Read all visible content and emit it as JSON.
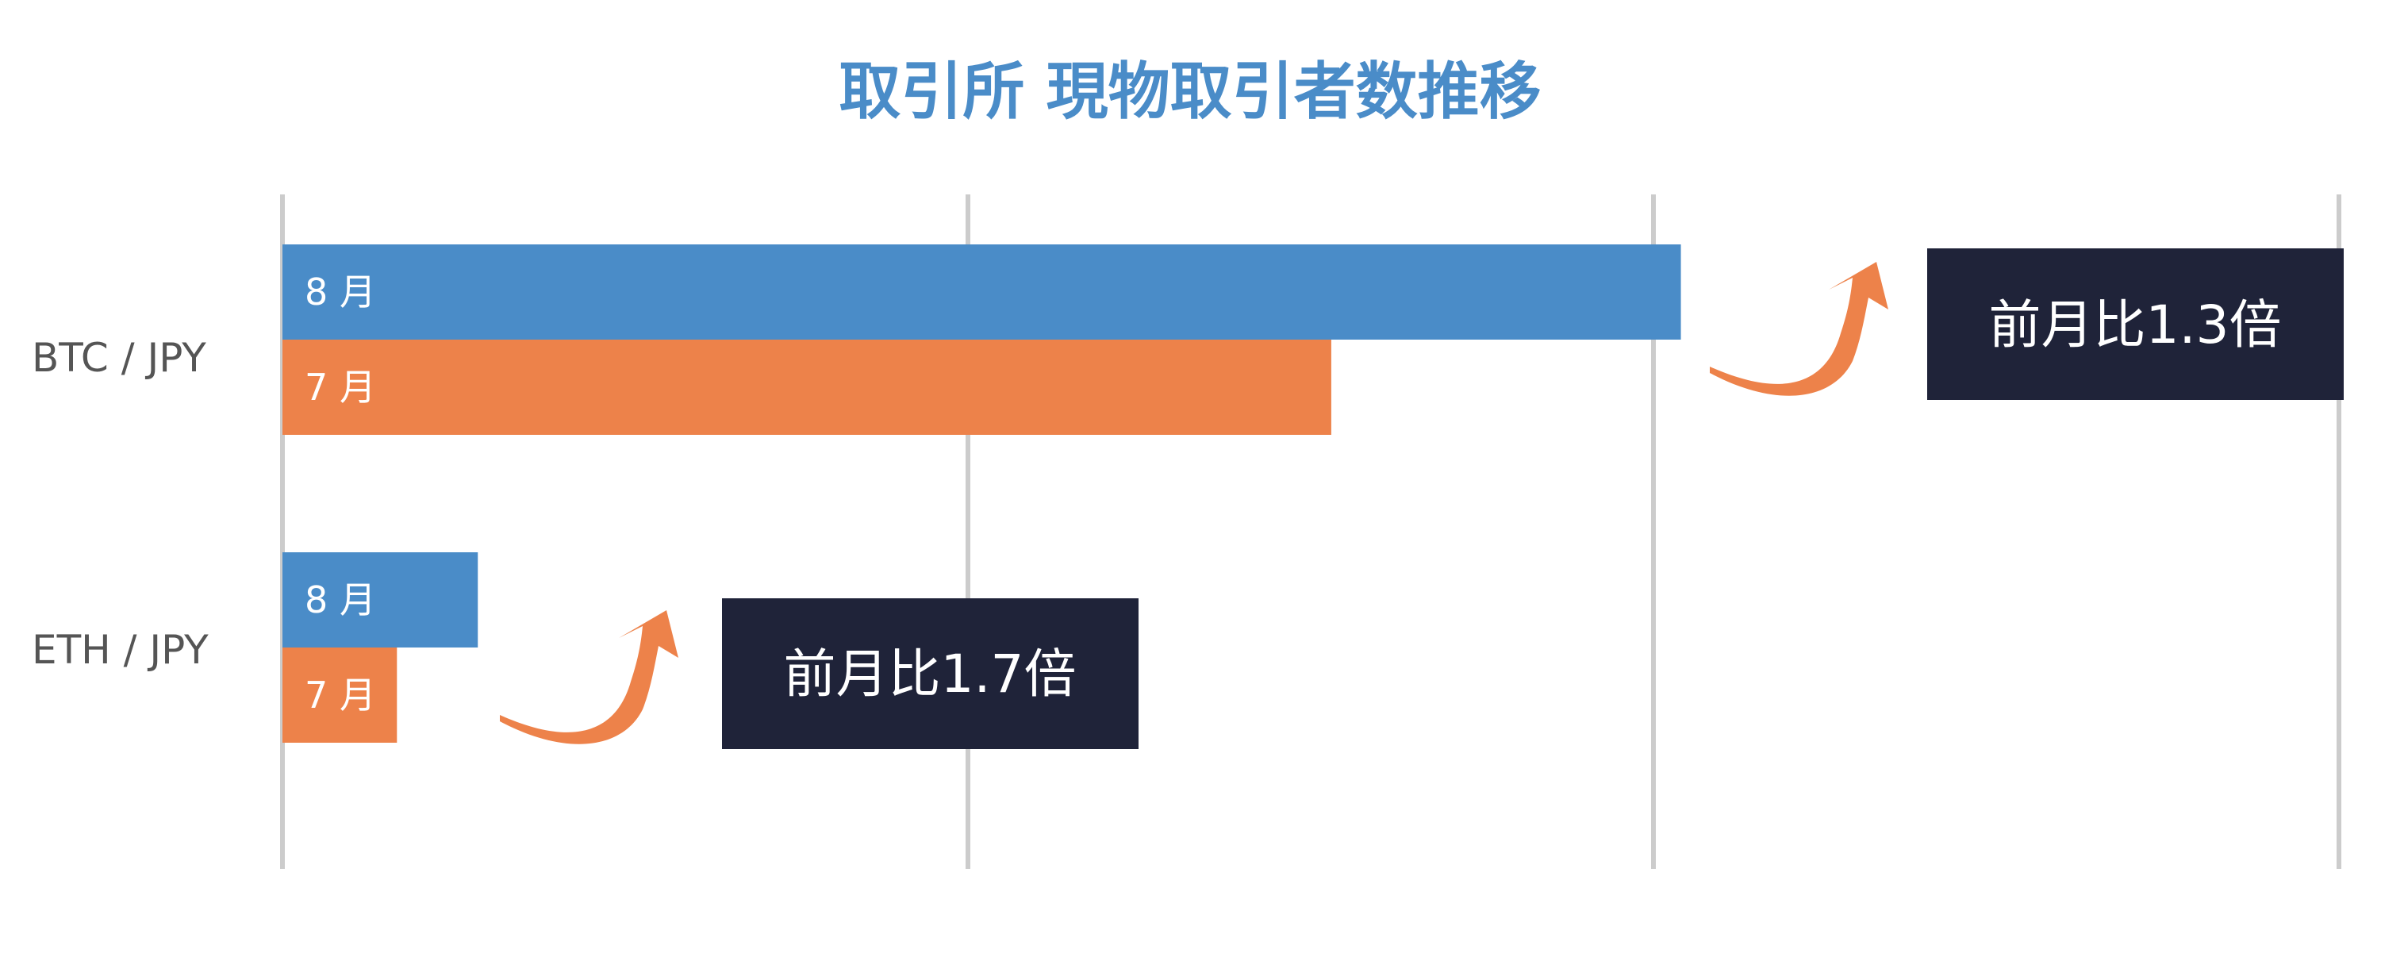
{
  "chart_data": {
    "type": "bar",
    "orientation": "horizontal",
    "title": "取引所 現物取引者数推移",
    "categories": [
      "BTC / JPY",
      "ETH / JPY"
    ],
    "series": [
      {
        "name": "8 月",
        "color": "#4a8cc8",
        "values": [
          2.04,
          0.285
        ]
      },
      {
        "name": "7 月",
        "color": "#ed824a",
        "values": [
          1.53,
          0.167
        ]
      }
    ],
    "xlim": [
      0,
      3
    ],
    "gridlines": [
      0,
      1,
      2,
      3
    ],
    "grid": true,
    "x_tick_labels_shown": false,
    "annotations": [
      {
        "category": "BTC / JPY",
        "text": "前月比1.3倍"
      },
      {
        "category": "ETH / JPY",
        "text": "前月比1.7倍"
      }
    ],
    "colors": {
      "title": "#4a8cc8",
      "callout_bg": "#1f2339",
      "arrow": "#ed824a",
      "grid": "#cccccc",
      "category_text": "#555555"
    }
  }
}
